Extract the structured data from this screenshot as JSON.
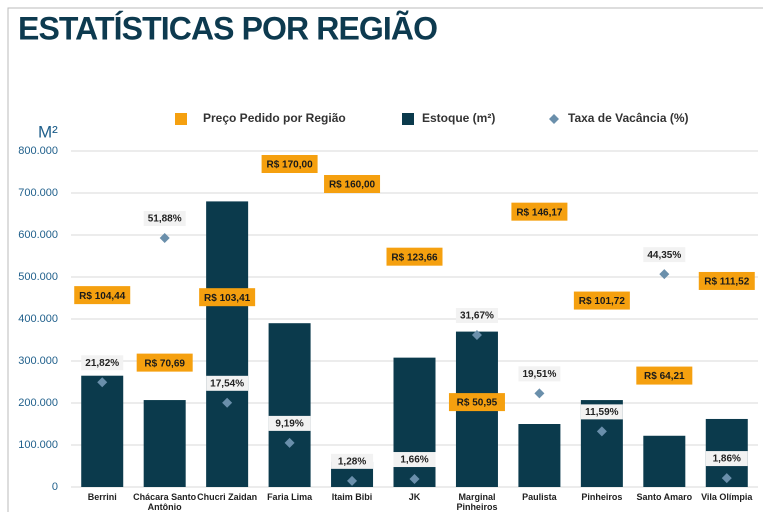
{
  "chart_data": {
    "type": "bar",
    "title": "ESTATÍSTICAS POR REGIÃO",
    "y_label": "M²",
    "categories": [
      "Berrini",
      "Chácara Santo Antônio",
      "Chucri Zaidan",
      "Faria Lima",
      "Itaim Bibi",
      "JK",
      "Marginal Pinheiros",
      "Paulista",
      "Pinheiros",
      "Santo Amaro",
      "Vila Olímpia"
    ],
    "series": [
      {
        "name": "Preço Pedido por Região",
        "type": "label",
        "color": "#f5a00f",
        "axis": "y3",
        "values": [
          104.44,
          70.69,
          103.41,
          170.0,
          160.0,
          123.66,
          50.95,
          146.17,
          101.72,
          64.21,
          111.52
        ],
        "value_labels": [
          "R$ 104,44",
          "R$ 70,69",
          "R$ 103,41",
          "R$ 170,00",
          "R$ 160,00",
          "R$ 123,66",
          "R$ 50,95",
          "R$ 146,17",
          "R$ 101,72",
          "R$ 64,21",
          "R$ 111,52"
        ]
      },
      {
        "name": "Estoque (m²)",
        "type": "bar",
        "color": "#0b3a4c",
        "values": [
          265000,
          207000,
          680000,
          390000,
          60000,
          308000,
          370000,
          150000,
          207000,
          122000,
          162000
        ]
      },
      {
        "name": "Taxa de Vacância (%)",
        "type": "scatter",
        "color": "#6a8fab",
        "axis": "y2",
        "values": [
          21.82,
          51.88,
          17.54,
          9.19,
          1.28,
          1.66,
          31.67,
          19.51,
          11.59,
          44.35,
          1.86
        ],
        "value_labels": [
          "21,82%",
          "51,88%",
          "17,54%",
          "9,19%",
          "1,28%",
          "1,66%",
          "31,67%",
          "19,51%",
          "11,59%",
          "44,35%",
          "1,86%"
        ]
      }
    ],
    "ylim": [
      0,
      800000
    ],
    "yticks": [
      0,
      {
        "value": 100000,
        "label": "100.000"
      },
      {
        "value": 200000,
        "label": "200.000"
      },
      {
        "value": 300000,
        "label": "300.000"
      },
      {
        "value": 400000,
        "label": "400.000"
      },
      {
        "value": 500000,
        "label": "500.000"
      },
      {
        "value": 600000,
        "label": "600.000"
      },
      {
        "value": 700000,
        "label": "700.000"
      },
      {
        "value": 800000,
        "label": "800.000"
      }
    ],
    "y2lim": [
      0,
      70
    ],
    "y3lim": [
      8.5,
      176.5
    ],
    "grid": true
  }
}
